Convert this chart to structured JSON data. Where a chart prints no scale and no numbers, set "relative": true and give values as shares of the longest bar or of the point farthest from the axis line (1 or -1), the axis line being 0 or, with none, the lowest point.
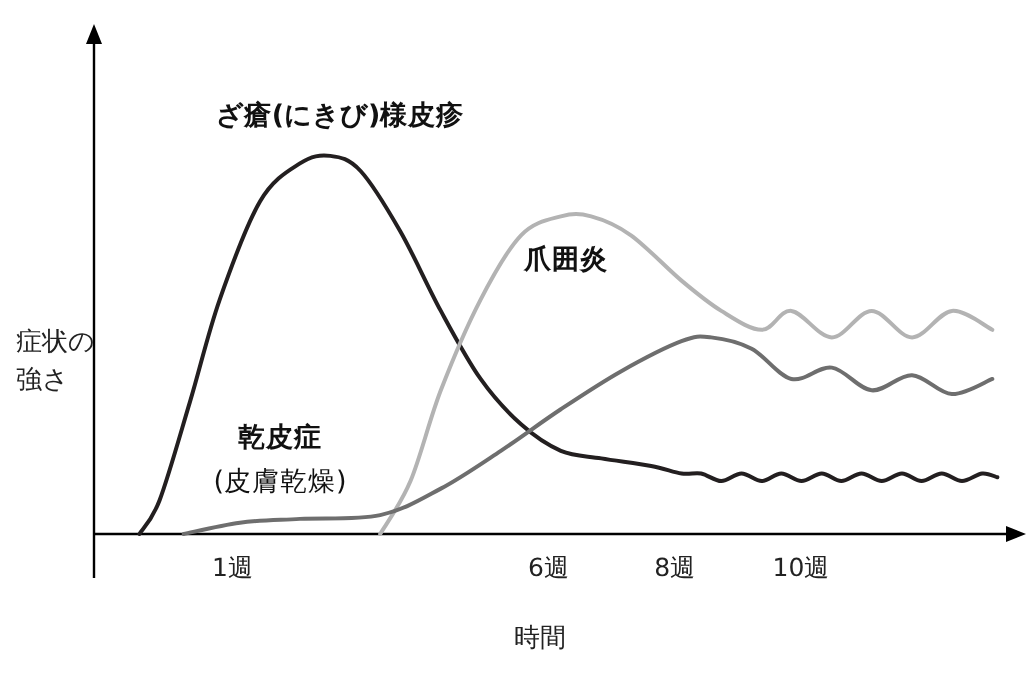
{
  "chart_data": {
    "type": "line",
    "relative": true,
    "xlabel": "時間",
    "ylabel": "症状の強さ",
    "xlim": [
      -1.2,
      13.3
    ],
    "xticks": [
      {
        "value": 1,
        "label": "1週"
      },
      {
        "value": 6,
        "label": "6週"
      },
      {
        "value": 8,
        "label": "8週"
      },
      {
        "value": 10,
        "label": "10週"
      }
    ],
    "grid": false,
    "marker": "none",
    "line_style": "solid",
    "series": [
      {
        "name": "ざ瘡(にきび)様皮疹",
        "color": "#231f20",
        "x": [
          -0.48,
          -0.16,
          0.32,
          0.79,
          1.43,
          2.06,
          2.54,
          3.02,
          3.65,
          4.29,
          4.92,
          5.56,
          6.19,
          6.83,
          7.62,
          8.1,
          8.41,
          8.73,
          9.05,
          9.37,
          9.68,
          10.0,
          10.32,
          10.63,
          10.95,
          11.27,
          11.59,
          11.9,
          12.22,
          12.54,
          12.86,
          13.1
        ],
        "values": [
          0,
          0.09,
          0.35,
          0.62,
          0.88,
          0.98,
          1.0,
          0.96,
          0.8,
          0.59,
          0.41,
          0.29,
          0.22,
          0.2,
          0.18,
          0.16,
          0.16,
          0.14,
          0.16,
          0.14,
          0.16,
          0.14,
          0.16,
          0.14,
          0.16,
          0.14,
          0.16,
          0.14,
          0.16,
          0.14,
          0.16,
          0.15
        ]
      },
      {
        "name": "爪囲炎",
        "color": "#b3b3b3",
        "x": [
          3.33,
          3.81,
          4.29,
          4.92,
          5.56,
          6.19,
          6.67,
          7.3,
          8.1,
          8.73,
          9.37,
          9.84,
          10.48,
          11.11,
          11.75,
          12.38,
          13.02
        ],
        "values": [
          0,
          0.14,
          0.38,
          0.62,
          0.79,
          0.84,
          0.84,
          0.79,
          0.67,
          0.59,
          0.54,
          0.59,
          0.52,
          0.59,
          0.52,
          0.59,
          0.54
        ]
      },
      {
        "name": "乾皮症\n(皮膚乾燥)",
        "color": "#6e6e6e",
        "x": [
          0.22,
          1.11,
          2.06,
          3.33,
          4.29,
          5.24,
          6.19,
          7.14,
          8.1,
          8.57,
          9.21,
          9.84,
          10.48,
          11.11,
          11.75,
          12.38,
          13.02
        ],
        "values": [
          0,
          0.03,
          0.04,
          0.05,
          0.12,
          0.22,
          0.33,
          0.43,
          0.51,
          0.52,
          0.49,
          0.41,
          0.44,
          0.38,
          0.42,
          0.37,
          0.41
        ]
      }
    ]
  }
}
